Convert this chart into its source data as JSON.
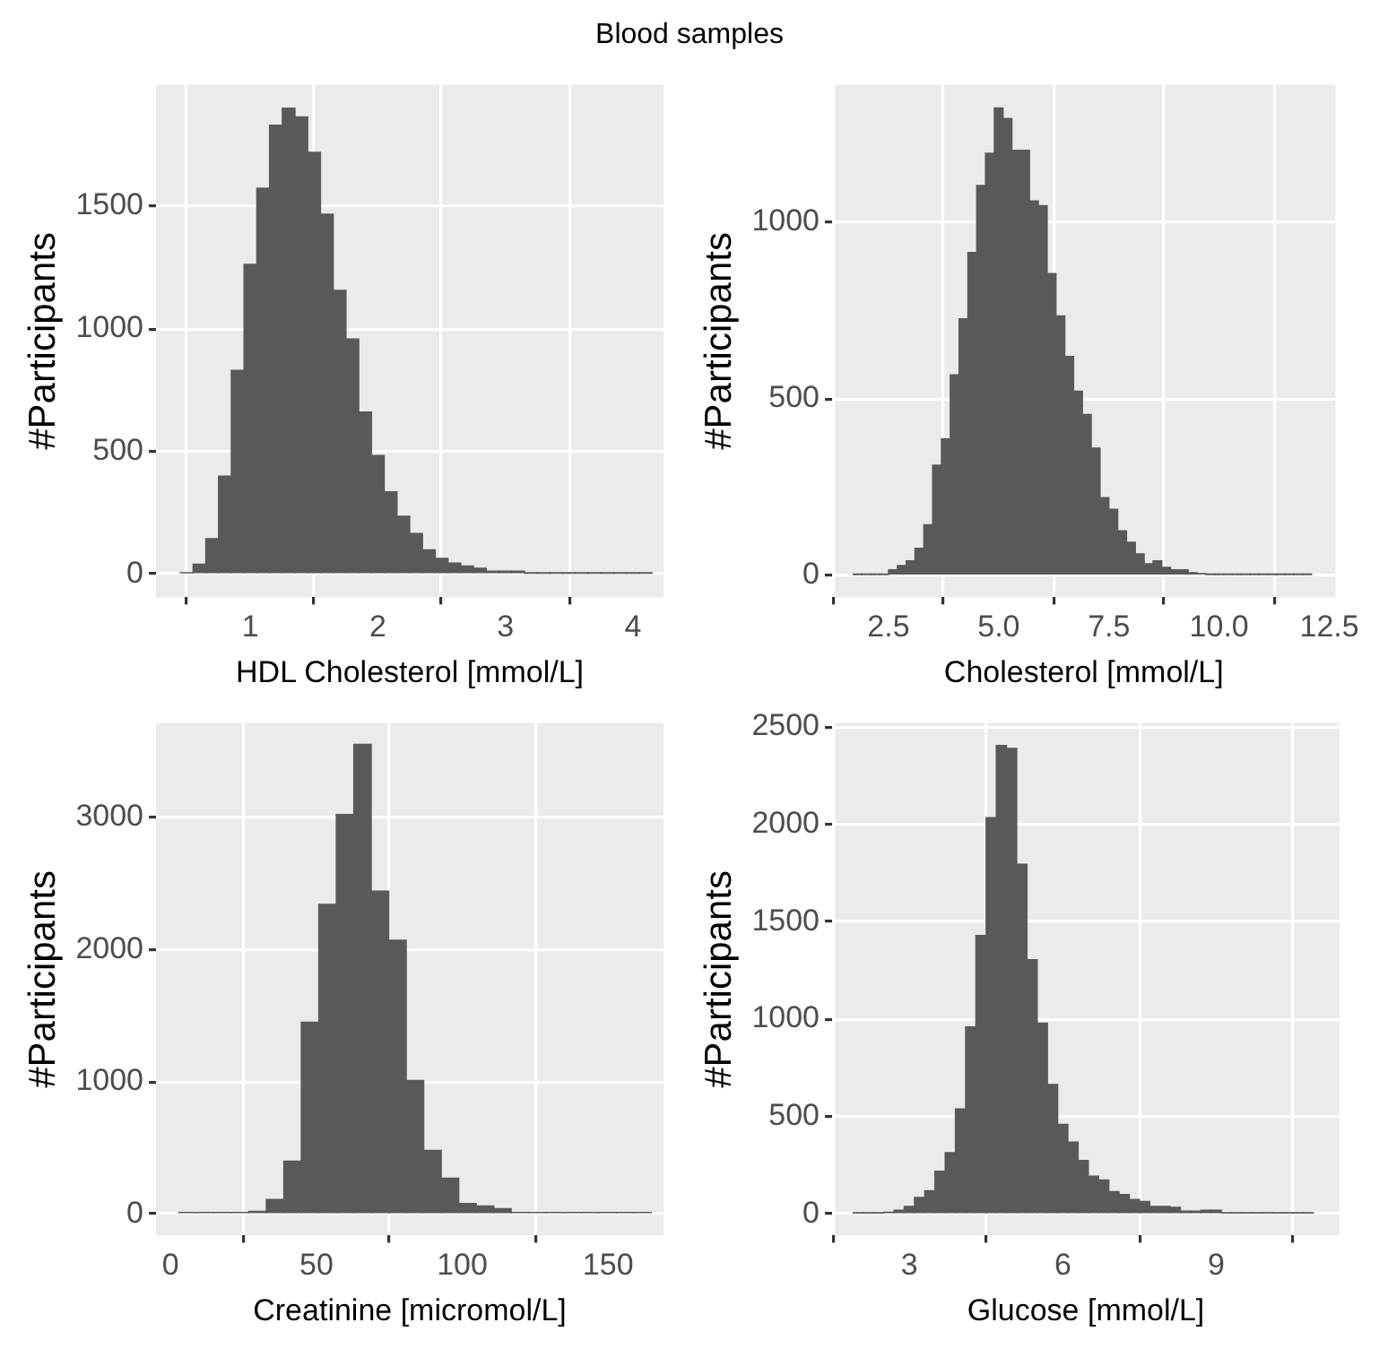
{
  "chart_data": [
    {
      "type": "histogram",
      "title": "Blood samples",
      "xlabel": "HDL Cholesterol [mmol/L]",
      "ylabel": "#Participants",
      "color": "#595959",
      "grid": true,
      "bins": [
        0.45,
        0.55,
        0.65,
        0.75,
        0.85,
        0.95,
        1.05,
        1.15,
        1.25,
        1.35,
        1.45,
        1.55,
        1.65,
        1.75,
        1.85,
        1.95,
        2.05,
        2.15,
        2.25,
        2.35,
        2.45,
        2.55,
        2.65,
        2.75,
        2.85,
        2.95,
        3.05,
        3.15,
        3.25,
        3.35,
        3.45,
        3.55,
        3.65,
        3.75,
        3.85,
        3.95,
        4.05,
        4.15
      ],
      "values": [
        5,
        40,
        144,
        399,
        830,
        1262,
        1573,
        1830,
        1899,
        1863,
        1719,
        1467,
        1156,
        958,
        660,
        483,
        335,
        236,
        165,
        99,
        64,
        45,
        33,
        24,
        12,
        12,
        12,
        3,
        3,
        3,
        3,
        3,
        3,
        3,
        3,
        3,
        3
      ],
      "xlim": [
        0.26,
        4.24
      ],
      "ylim": [
        -95,
        1995
      ],
      "xticks": [
        1,
        2,
        3,
        4
      ],
      "yticks": [
        0,
        500,
        1000,
        1500
      ]
    },
    {
      "type": "histogram",
      "xlabel": "Cholesterol [mmol/L]",
      "ylabel": "#Participants",
      "color": "#595959",
      "grid": true,
      "bins": [
        1.7,
        1.9,
        2.1,
        2.3,
        2.5,
        2.7,
        2.9,
        3.1,
        3.3,
        3.5,
        3.7,
        3.9,
        4.1,
        4.3,
        4.5,
        4.7,
        4.9,
        5.1,
        5.3,
        5.5,
        5.7,
        5.9,
        6.1,
        6.3,
        6.5,
        6.7,
        6.9,
        7.1,
        7.3,
        7.5,
        7.7,
        7.9,
        8.1,
        8.3,
        8.5,
        8.7,
        8.9,
        9.1,
        9.3,
        9.5,
        9.7,
        9.9,
        10.1,
        10.3,
        10.5,
        10.7,
        10.9,
        11.1,
        11.3,
        11.5,
        11.7,
        11.9,
        12.1
      ],
      "values": [
        2,
        2,
        2,
        2,
        16,
        28,
        41,
        77,
        143,
        312,
        386,
        567,
        726,
        913,
        1103,
        1194,
        1322,
        1292,
        1202,
        1202,
        1059,
        1046,
        854,
        734,
        619,
        521,
        455,
        360,
        220,
        187,
        126,
        94,
        61,
        33,
        41,
        23,
        16,
        16,
        8,
        5,
        2,
        2,
        2,
        2,
        2,
        2,
        2,
        2,
        2,
        2,
        2,
        2
      ],
      "xlim": [
        1.22,
        12.64
      ],
      "ylim": [
        -62,
        1388
      ],
      "xticks": [
        2.5,
        {
          "value": 5,
          "label": "5.0"
        },
        7.5,
        {
          "value": 10,
          "label": "10.0"
        },
        12.5
      ],
      "yticks": [
        0,
        500,
        1000
      ]
    },
    {
      "type": "histogram",
      "xlabel": "Creatinine [micromol/L]",
      "ylabel": "#Participants",
      "color": "#595959",
      "grid": true,
      "bins": [
        2.8,
        8.8,
        14.8,
        20.8,
        26.8,
        32.8,
        38.8,
        44.8,
        50.8,
        56.8,
        62.8,
        68.8,
        74.8,
        80.8,
        86.8,
        92.8,
        98.8,
        104.8,
        110.8,
        116.8,
        122.8,
        128.8,
        134.8,
        140.8,
        146.8,
        152.8,
        158.8,
        164.8
      ],
      "values": [
        10,
        10,
        10,
        10,
        20,
        110,
        400,
        1450,
        2340,
        3020,
        3550,
        2440,
        2070,
        1010,
        480,
        270,
        80,
        60,
        40,
        10,
        10,
        10,
        10,
        10,
        10,
        10,
        10
      ],
      "xlim": [
        -5,
        169
      ],
      "ylim": [
        -163,
        3713
      ],
      "xticks": [
        0,
        50,
        100,
        150
      ],
      "yticks": [
        0,
        1000,
        2000,
        3000
      ]
    },
    {
      "type": "histogram",
      "xlabel": "Glucose [mmol/L]",
      "ylabel": "#Participants",
      "color": "#595959",
      "grid": true,
      "bins": [
        1.9,
        2.1,
        2.3,
        2.5,
        2.7,
        2.9,
        3.1,
        3.3,
        3.5,
        3.7,
        3.9,
        4.1,
        4.3,
        4.5,
        4.7,
        4.9,
        5.1,
        5.3,
        5.5,
        5.7,
        5.9,
        6.1,
        6.3,
        6.5,
        6.7,
        6.9,
        7.1,
        7.3,
        7.5,
        7.7,
        7.9,
        8.1,
        8.3,
        8.5,
        8.7,
        8.9,
        9.1,
        9.3,
        9.5,
        9.7,
        9.9,
        10.1,
        10.3,
        10.5,
        10.7,
        10.9
      ],
      "values": [
        5,
        5,
        5,
        10,
        20,
        40,
        85,
        120,
        220,
        315,
        540,
        960,
        1430,
        2035,
        2405,
        2390,
        1795,
        1305,
        980,
        665,
        460,
        370,
        275,
        195,
        175,
        115,
        100,
        75,
        65,
        40,
        40,
        35,
        15,
        15,
        20,
        20,
        5,
        5,
        5,
        5,
        5,
        5,
        5,
        5,
        5
      ],
      "xlim": [
        1.49,
        11.41
      ],
      "ylim": [
        -110,
        2521
      ],
      "xticks": [
        3,
        6,
        9
      ],
      "yticks": [
        0,
        500,
        1000,
        1500,
        2000,
        2500
      ]
    }
  ]
}
